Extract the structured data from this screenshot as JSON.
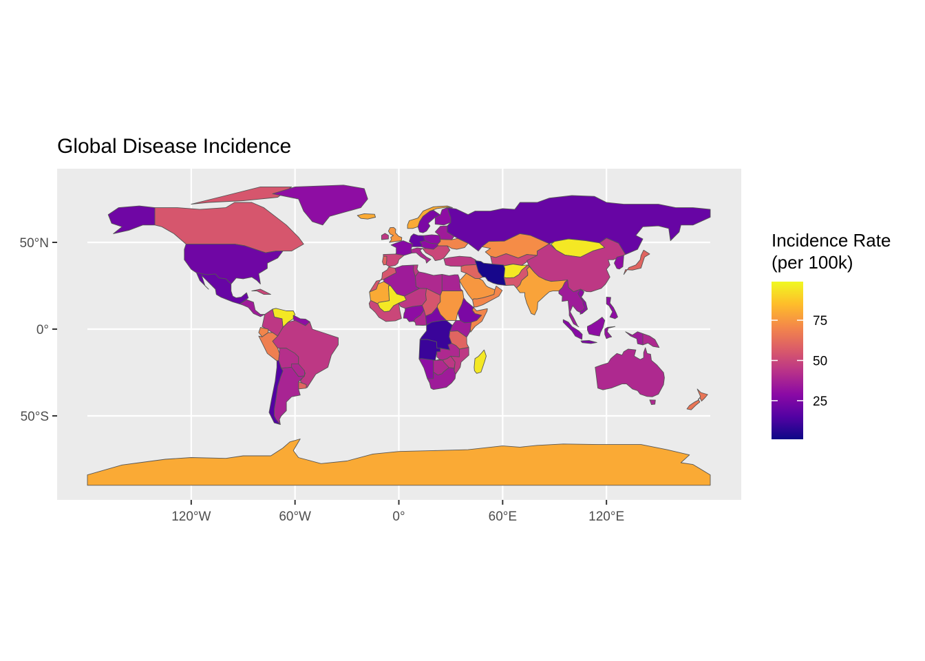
{
  "title": "Global Disease Incidence",
  "axes": {
    "x_ticks": [
      {
        "value": -120,
        "label": "120°W"
      },
      {
        "value": -60,
        "label": "60°W"
      },
      {
        "value": 0,
        "label": "0°"
      },
      {
        "value": 60,
        "label": "60°E"
      },
      {
        "value": 120,
        "label": "120°E"
      }
    ],
    "y_ticks": [
      {
        "value": 50,
        "label": "50°N"
      },
      {
        "value": 0,
        "label": "0°"
      },
      {
        "value": -50,
        "label": "50°S"
      }
    ]
  },
  "legend": {
    "title_line1": "Incidence Rate",
    "title_line2": "(per 100k)",
    "ticks": [
      {
        "value": 75,
        "label": "75"
      },
      {
        "value": 50,
        "label": "50"
      },
      {
        "value": 25,
        "label": "25"
      }
    ],
    "range": [
      1,
      99
    ],
    "colors": [
      "#0d0887",
      "#5302a3",
      "#8b0aa5",
      "#b83289",
      "#db5c68",
      "#f48849",
      "#febd2a",
      "#f0f921"
    ]
  },
  "colors": {
    "panel_background": "#ebebeb",
    "gridline": "#ffffff",
    "country_border": "#555555"
  },
  "map_data": {
    "projection": "equirectangular",
    "lon_range": [
      -180,
      180
    ],
    "lat_range": [
      -90,
      84
    ],
    "regions": [
      {
        "region": "Alaska (USA)",
        "value": 22
      },
      {
        "region": "Canada",
        "value": 55
      },
      {
        "region": "Greenland",
        "value": 30
      },
      {
        "region": "United States",
        "value": 22
      },
      {
        "region": "Mexico",
        "value": 20
      },
      {
        "region": "Central America",
        "value": 35
      },
      {
        "region": "Cuba",
        "value": 50
      },
      {
        "region": "Venezuela",
        "value": 95
      },
      {
        "region": "Colombia",
        "value": 45
      },
      {
        "region": "Ecuador",
        "value": 70
      },
      {
        "region": "Peru",
        "value": 68
      },
      {
        "region": "Brazil",
        "value": 45
      },
      {
        "region": "Bolivia",
        "value": 42
      },
      {
        "region": "Paraguay",
        "value": 40
      },
      {
        "region": "Argentina",
        "value": 38
      },
      {
        "region": "Chile",
        "value": 15
      },
      {
        "region": "Uruguay",
        "value": 60
      },
      {
        "region": "Guyana",
        "value": 30
      },
      {
        "region": "Iceland",
        "value": 80
      },
      {
        "region": "Norway",
        "value": 80
      },
      {
        "region": "Sweden",
        "value": 25
      },
      {
        "region": "Finland",
        "value": 30
      },
      {
        "region": "United Kingdom",
        "value": 75
      },
      {
        "region": "Ireland",
        "value": 45
      },
      {
        "region": "France",
        "value": 28
      },
      {
        "region": "Spain",
        "value": 50
      },
      {
        "region": "Portugal",
        "value": 60
      },
      {
        "region": "Germany",
        "value": 20
      },
      {
        "region": "Poland",
        "value": 30
      },
      {
        "region": "Italy",
        "value": 40
      },
      {
        "region": "Ukraine",
        "value": 70
      },
      {
        "region": "Turkey",
        "value": 45
      },
      {
        "region": "Russia",
        "value": 20
      },
      {
        "region": "Kazakhstan",
        "value": 72
      },
      {
        "region": "Mongolia",
        "value": 95
      },
      {
        "region": "China",
        "value": 45
      },
      {
        "region": "Japan",
        "value": 60
      },
      {
        "region": "Korea",
        "value": 30
      },
      {
        "region": "Iran",
        "value": 3
      },
      {
        "region": "Afghanistan",
        "value": 95
      },
      {
        "region": "Pakistan",
        "value": 55
      },
      {
        "region": "India",
        "value": 78
      },
      {
        "region": "Saudi Arabia",
        "value": 75
      },
      {
        "region": "Yemen",
        "value": 60
      },
      {
        "region": "Southeast Asia",
        "value": 35
      },
      {
        "region": "Vietnam",
        "value": 30
      },
      {
        "region": "Indonesia",
        "value": 28
      },
      {
        "region": "Philippines",
        "value": 30
      },
      {
        "region": "Papua New Guinea",
        "value": 40
      },
      {
        "region": "Australia",
        "value": 40
      },
      {
        "region": "New Zealand",
        "value": 65
      },
      {
        "region": "Morocco",
        "value": 55
      },
      {
        "region": "Algeria",
        "value": 35
      },
      {
        "region": "Libya",
        "value": 40
      },
      {
        "region": "Egypt",
        "value": 38
      },
      {
        "region": "Mali",
        "value": 95
      },
      {
        "region": "Mauritania",
        "value": 80
      },
      {
        "region": "Niger",
        "value": 45
      },
      {
        "region": "Chad",
        "value": 55
      },
      {
        "region": "Sudan",
        "value": 75
      },
      {
        "region": "Ethiopia",
        "value": 25
      },
      {
        "region": "Somalia",
        "value": 70
      },
      {
        "region": "Nigeria",
        "value": 30
      },
      {
        "region": "Central African Republic",
        "value": 25
      },
      {
        "region": "DR Congo",
        "value": 10
      },
      {
        "region": "Kenya",
        "value": 35
      },
      {
        "region": "Tanzania",
        "value": 60
      },
      {
        "region": "Angola",
        "value": 10
      },
      {
        "region": "Zambia",
        "value": 25
      },
      {
        "region": "Mozambique",
        "value": 45
      },
      {
        "region": "Namibia",
        "value": 30
      },
      {
        "region": "Botswana",
        "value": 40
      },
      {
        "region": "South Africa",
        "value": 35
      },
      {
        "region": "Madagascar",
        "value": 95
      },
      {
        "region": "Antarctica",
        "value": 80
      }
    ]
  }
}
